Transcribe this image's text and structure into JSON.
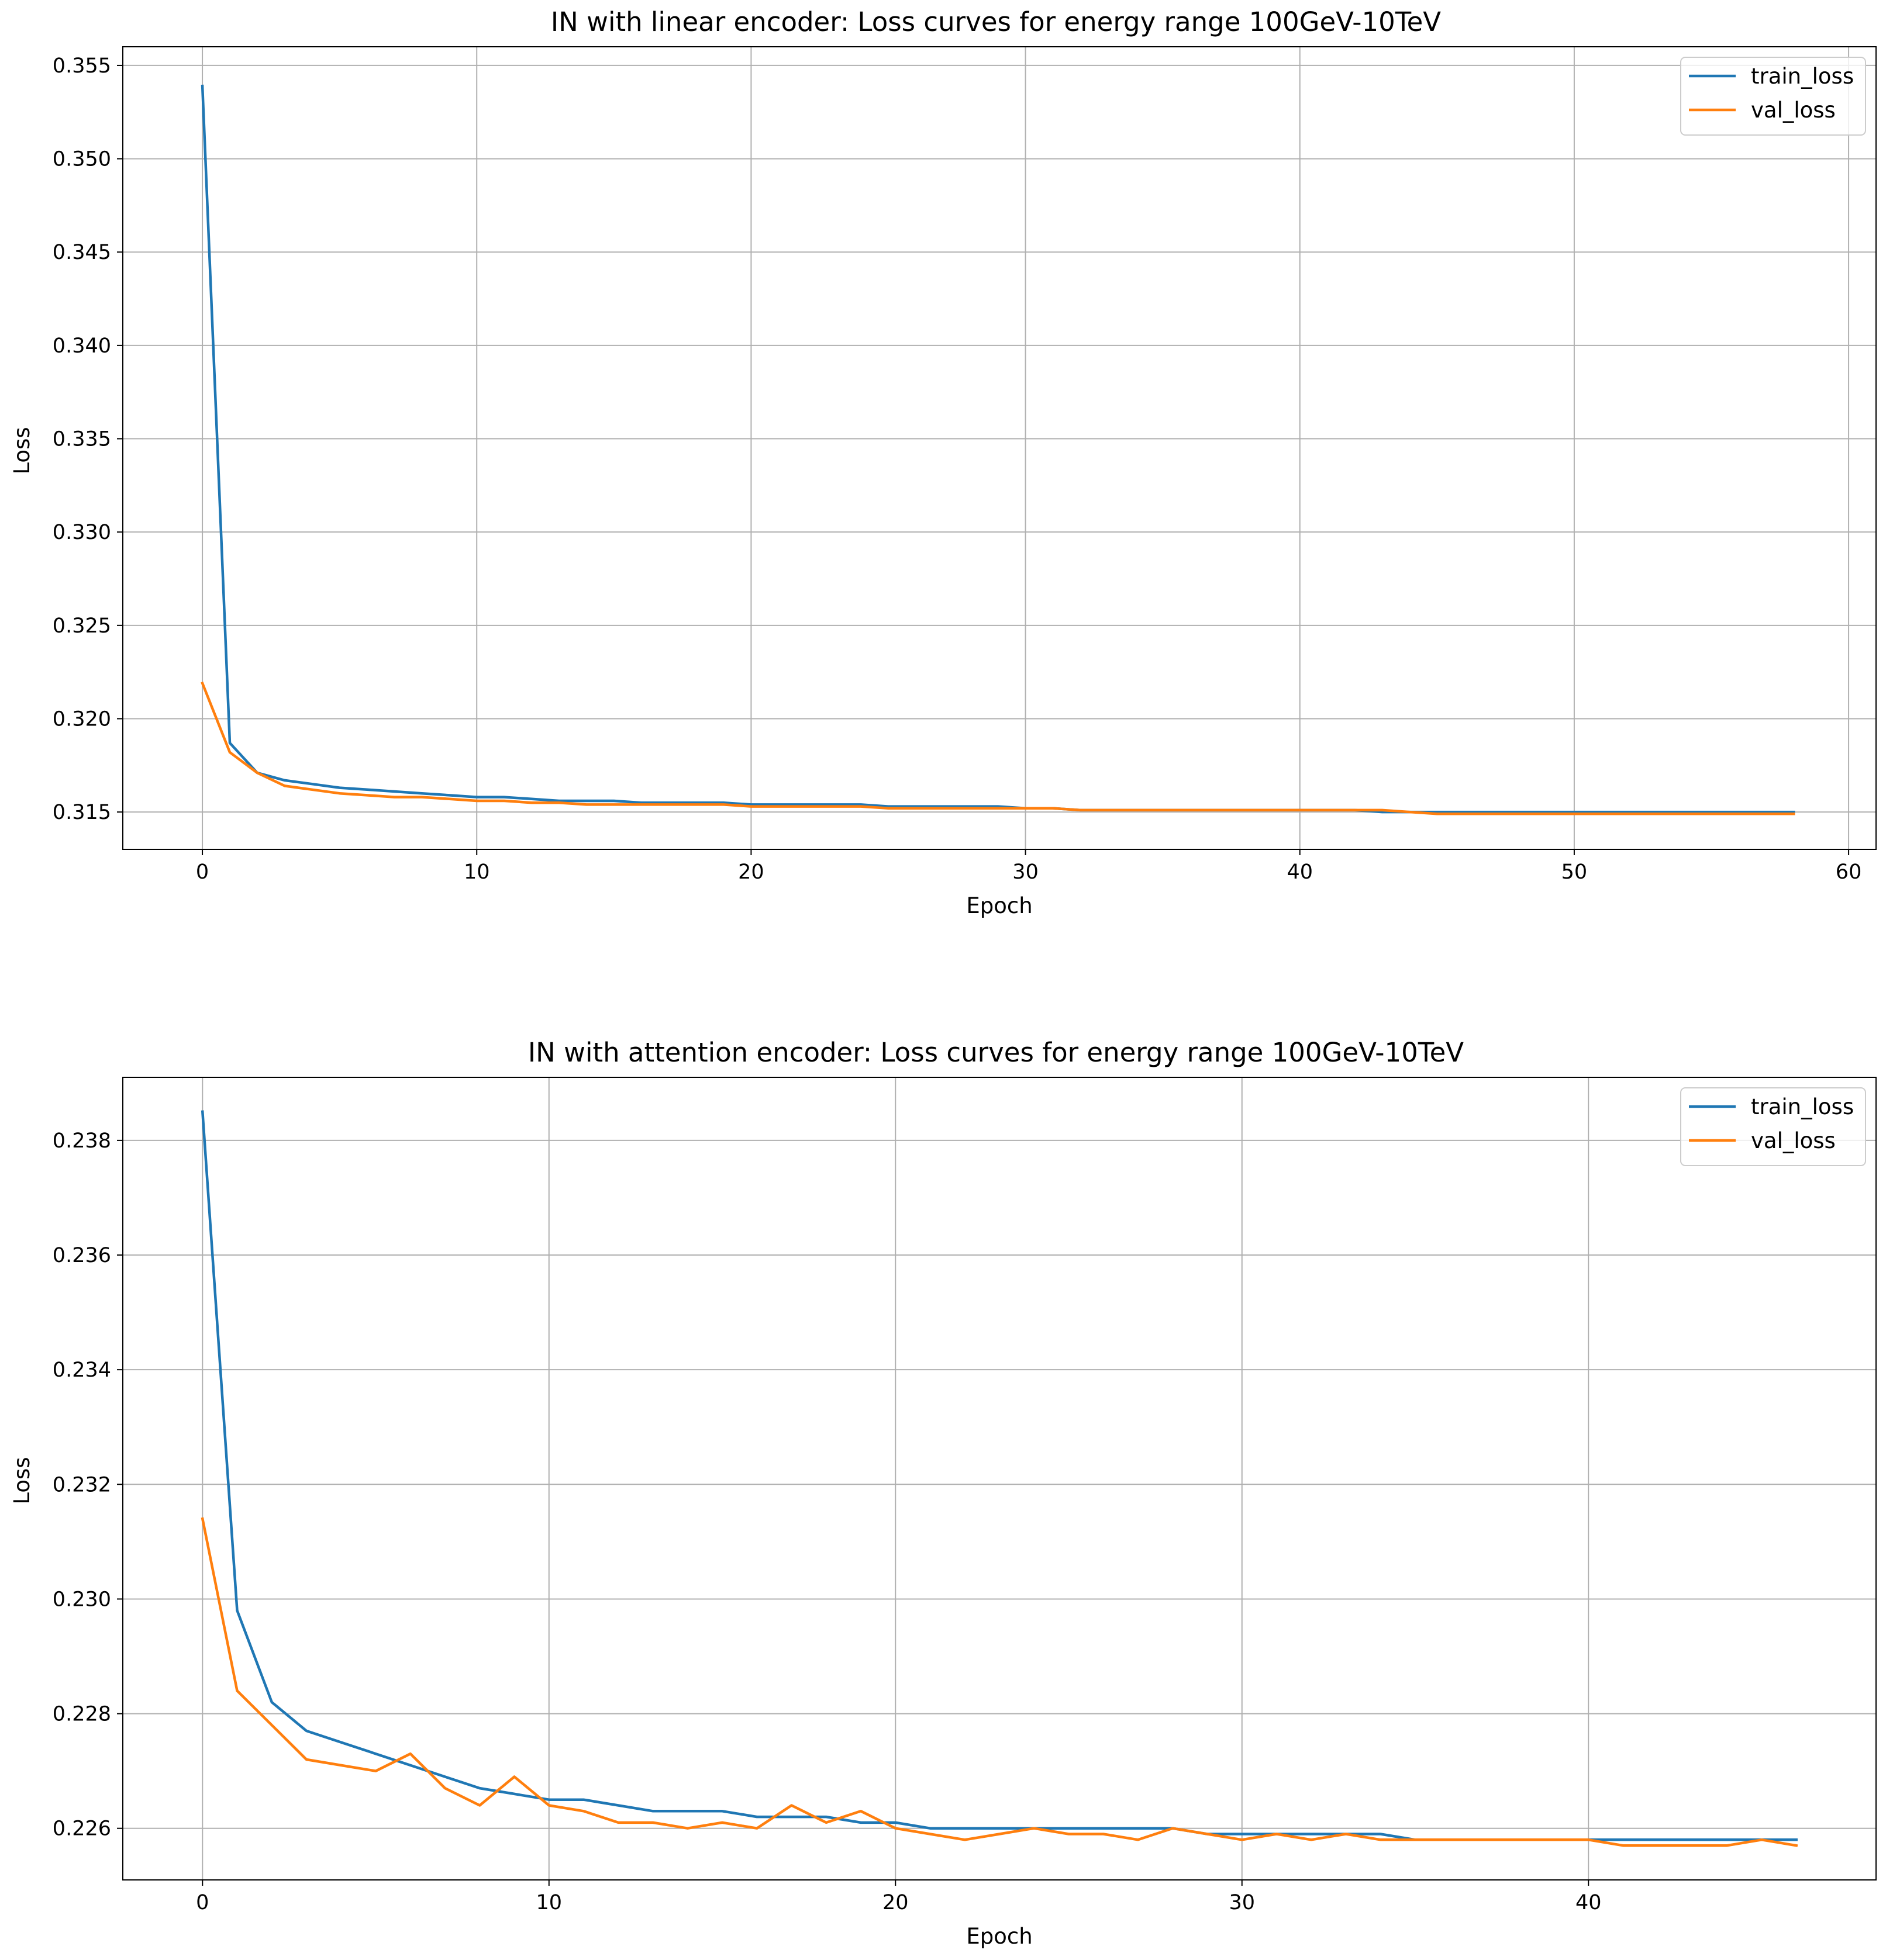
{
  "colors": {
    "train": "#1f77b4",
    "val": "#ff7f0e",
    "grid": "#b0b0b0",
    "background": "#ffffff"
  },
  "chart_data": [
    {
      "type": "line",
      "title": "IN with linear encoder: Loss curves for energy range 100GeV-10TeV",
      "xlabel": "Epoch",
      "ylabel": "Loss",
      "xlim": [
        -2.9,
        61.0
      ],
      "ylim": [
        0.313,
        0.356
      ],
      "xticks": [
        0,
        10,
        20,
        30,
        40,
        50,
        60
      ],
      "yticks": [
        0.315,
        0.32,
        0.325,
        0.33,
        0.335,
        0.34,
        0.345,
        0.35,
        0.355
      ],
      "xtick_labels": [
        "0",
        "10",
        "20",
        "30",
        "40",
        "50",
        "60"
      ],
      "ytick_labels": [
        "0.315",
        "0.320",
        "0.325",
        "0.330",
        "0.335",
        "0.340",
        "0.345",
        "0.350",
        "0.355"
      ],
      "grid": true,
      "legend": "top-right",
      "x": [
        0,
        1,
        2,
        3,
        4,
        5,
        6,
        7,
        8,
        9,
        10,
        11,
        12,
        13,
        14,
        15,
        16,
        17,
        18,
        19,
        20,
        21,
        22,
        23,
        24,
        25,
        26,
        27,
        28,
        29,
        30,
        31,
        32,
        33,
        34,
        35,
        36,
        37,
        38,
        39,
        40,
        41,
        42,
        43,
        44,
        45,
        46,
        47,
        48,
        49,
        50,
        51,
        52,
        53,
        54,
        55,
        56,
        57,
        58
      ],
      "series": [
        {
          "name": "train_loss",
          "color": "#1f77b4",
          "values": [
            0.3539,
            0.3187,
            0.3171,
            0.3167,
            0.3165,
            0.3163,
            0.3162,
            0.3161,
            0.316,
            0.3159,
            0.3158,
            0.3158,
            0.3157,
            0.3156,
            0.3156,
            0.3156,
            0.3155,
            0.3155,
            0.3155,
            0.3155,
            0.3154,
            0.3154,
            0.3154,
            0.3154,
            0.3154,
            0.3153,
            0.3153,
            0.3153,
            0.3153,
            0.3153,
            0.3152,
            0.3152,
            0.3151,
            0.3151,
            0.3151,
            0.3151,
            0.3151,
            0.3151,
            0.3151,
            0.3151,
            0.3151,
            0.3151,
            0.3151,
            0.315,
            0.315,
            0.315,
            0.315,
            0.315,
            0.315,
            0.315,
            0.315,
            0.315,
            0.315,
            0.315,
            0.315,
            0.315,
            0.315,
            0.315,
            0.315
          ]
        },
        {
          "name": "val_loss",
          "color": "#ff7f0e",
          "values": [
            0.3219,
            0.3182,
            0.3171,
            0.3164,
            0.3162,
            0.316,
            0.3159,
            0.3158,
            0.3158,
            0.3157,
            0.3156,
            0.3156,
            0.3155,
            0.3155,
            0.3154,
            0.3154,
            0.3154,
            0.3154,
            0.3154,
            0.3154,
            0.3153,
            0.3153,
            0.3153,
            0.3153,
            0.3153,
            0.3152,
            0.3152,
            0.3152,
            0.3152,
            0.3152,
            0.3152,
            0.3152,
            0.3151,
            0.3151,
            0.3151,
            0.3151,
            0.3151,
            0.3151,
            0.3151,
            0.3151,
            0.3151,
            0.3151,
            0.3151,
            0.3151,
            0.315,
            0.3149,
            0.3149,
            0.3149,
            0.3149,
            0.3149,
            0.3149,
            0.3149,
            0.3149,
            0.3149,
            0.3149,
            0.3149,
            0.3149,
            0.3149,
            0.3149
          ]
        }
      ]
    },
    {
      "type": "line",
      "title": "IN with attention encoder: Loss curves for energy range 100GeV-10TeV",
      "xlabel": "Epoch",
      "ylabel": "Loss",
      "xlim": [
        -2.3,
        48.3
      ],
      "ylim": [
        0.2251,
        0.2391
      ],
      "xticks": [
        0,
        10,
        20,
        30,
        40
      ],
      "yticks": [
        0.226,
        0.228,
        0.23,
        0.232,
        0.234,
        0.236,
        0.238
      ],
      "xtick_labels": [
        "0",
        "10",
        "20",
        "30",
        "40"
      ],
      "ytick_labels": [
        "0.226",
        "0.228",
        "0.230",
        "0.232",
        "0.234",
        "0.236",
        "0.238"
      ],
      "grid": true,
      "legend": "top-right",
      "x": [
        0,
        1,
        2,
        3,
        4,
        5,
        6,
        7,
        8,
        9,
        10,
        11,
        12,
        13,
        14,
        15,
        16,
        17,
        18,
        19,
        20,
        21,
        22,
        23,
        24,
        25,
        26,
        27,
        28,
        29,
        30,
        31,
        32,
        33,
        34,
        35,
        36,
        37,
        38,
        39,
        40,
        41,
        42,
        43,
        44,
        45,
        46
      ],
      "series": [
        {
          "name": "train_loss",
          "color": "#1f77b4",
          "values": [
            0.2385,
            0.2298,
            0.2282,
            0.2277,
            0.2275,
            0.2273,
            0.2271,
            0.2269,
            0.2267,
            0.2266,
            0.2265,
            0.2265,
            0.2264,
            0.2263,
            0.2263,
            0.2263,
            0.2262,
            0.2262,
            0.2262,
            0.2261,
            0.2261,
            0.226,
            0.226,
            0.226,
            0.226,
            0.226,
            0.226,
            0.226,
            0.226,
            0.2259,
            0.2259,
            0.2259,
            0.2259,
            0.2259,
            0.2259,
            0.2258,
            0.2258,
            0.2258,
            0.2258,
            0.2258,
            0.2258,
            0.2258,
            0.2258,
            0.2258,
            0.2258,
            0.2258,
            0.2258
          ]
        },
        {
          "name": "val_loss",
          "color": "#ff7f0e",
          "values": [
            0.2314,
            0.2284,
            0.2278,
            0.2272,
            0.2271,
            0.227,
            0.2273,
            0.2267,
            0.2264,
            0.2269,
            0.2264,
            0.2263,
            0.2261,
            0.2261,
            0.226,
            0.2261,
            0.226,
            0.2264,
            0.2261,
            0.2263,
            0.226,
            0.2259,
            0.2258,
            0.2259,
            0.226,
            0.2259,
            0.2259,
            0.2258,
            0.226,
            0.2259,
            0.2258,
            0.2259,
            0.2258,
            0.2259,
            0.2258,
            0.2258,
            0.2258,
            0.2258,
            0.2258,
            0.2258,
            0.2258,
            0.2257,
            0.2257,
            0.2257,
            0.2257,
            0.2258,
            0.2257
          ]
        }
      ]
    }
  ]
}
